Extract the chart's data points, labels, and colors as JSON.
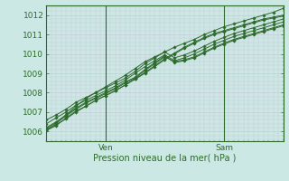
{
  "title": "",
  "xlabel": "Pression niveau de la mer( hPa )",
  "ylabel": "",
  "bg_color": "#cce8e4",
  "grid_color": "#c8c8d8",
  "line_color": "#2d6b2d",
  "ylim": [
    1005.5,
    1012.5
  ],
  "xlim": [
    0,
    48
  ],
  "xtick_positions": [
    12,
    36
  ],
  "xtick_labels": [
    "Ven",
    "Sam"
  ],
  "ytick_positions": [
    1006,
    1007,
    1008,
    1009,
    1010,
    1011,
    1012
  ],
  "vline_positions": [
    12,
    36
  ],
  "series": [
    {
      "x": [
        0,
        2,
        4,
        6,
        8,
        10,
        12,
        14,
        16,
        18,
        20,
        22,
        24,
        26,
        28,
        30,
        32,
        34,
        36,
        38,
        40,
        42,
        44,
        46,
        48
      ],
      "y": [
        1006.05,
        1006.3,
        1006.7,
        1007.05,
        1007.3,
        1007.6,
        1007.85,
        1008.1,
        1008.4,
        1008.7,
        1009.05,
        1009.4,
        1009.75,
        1010.05,
        1010.35,
        1010.6,
        1010.85,
        1011.05,
        1011.2,
        1011.35,
        1011.5,
        1011.65,
        1011.8,
        1011.9,
        1012.0
      ]
    },
    {
      "x": [
        0,
        2,
        4,
        6,
        8,
        10,
        12,
        14,
        16,
        18,
        20,
        22,
        24,
        26,
        28,
        30,
        32,
        34,
        36,
        38,
        40,
        42,
        44,
        46,
        48
      ],
      "y": [
        1006.1,
        1006.35,
        1006.65,
        1007.0,
        1007.3,
        1007.6,
        1007.85,
        1008.1,
        1008.4,
        1008.7,
        1009.0,
        1009.35,
        1009.7,
        1010.0,
        1010.3,
        1010.55,
        1010.8,
        1011.0,
        1011.15,
        1011.3,
        1011.45,
        1011.6,
        1011.75,
        1011.85,
        1011.95
      ]
    },
    {
      "x": [
        0,
        2,
        4,
        6,
        8,
        10,
        12,
        14,
        16,
        18,
        20,
        22,
        24,
        26,
        28,
        30,
        32,
        34,
        36,
        38,
        40,
        42,
        44,
        46,
        48
      ],
      "y": [
        1006.15,
        1006.45,
        1006.8,
        1007.15,
        1007.45,
        1007.7,
        1007.95,
        1008.2,
        1008.5,
        1008.75,
        1009.15,
        1009.5,
        1009.85,
        1009.6,
        1009.7,
        1009.85,
        1010.1,
        1010.35,
        1010.55,
        1010.75,
        1010.9,
        1011.05,
        1011.2,
        1011.35,
        1011.5
      ]
    },
    {
      "x": [
        0,
        2,
        4,
        6,
        8,
        10,
        12,
        14,
        16,
        18,
        20,
        22,
        24,
        26,
        28,
        30,
        32,
        34,
        36,
        38,
        40,
        42,
        44,
        46,
        48
      ],
      "y": [
        1006.2,
        1006.5,
        1006.85,
        1007.2,
        1007.5,
        1007.75,
        1008.0,
        1008.25,
        1008.55,
        1008.8,
        1009.2,
        1009.55,
        1009.9,
        1009.55,
        1009.65,
        1009.8,
        1010.05,
        1010.3,
        1010.5,
        1010.7,
        1010.85,
        1011.0,
        1011.15,
        1011.3,
        1011.45
      ]
    },
    {
      "x": [
        0,
        2,
        4,
        6,
        8,
        10,
        12,
        14,
        16,
        18,
        20,
        22,
        24,
        26,
        28,
        30,
        32,
        34,
        36,
        38,
        40,
        42,
        44,
        46,
        48
      ],
      "y": [
        1006.4,
        1006.7,
        1007.0,
        1007.35,
        1007.6,
        1007.85,
        1008.1,
        1008.35,
        1008.65,
        1009.0,
        1009.35,
        1009.65,
        1009.95,
        1009.65,
        1009.8,
        1010.0,
        1010.25,
        1010.5,
        1010.7,
        1010.9,
        1011.05,
        1011.2,
        1011.35,
        1011.5,
        1011.65
      ]
    },
    {
      "x": [
        0,
        2,
        4,
        6,
        8,
        10,
        12,
        14,
        16,
        18,
        20,
        22,
        24,
        26,
        28,
        30,
        32,
        34,
        36,
        38,
        40,
        42,
        44,
        46,
        48
      ],
      "y": [
        1006.6,
        1006.85,
        1007.15,
        1007.5,
        1007.75,
        1008.0,
        1008.25,
        1008.5,
        1008.75,
        1009.1,
        1009.5,
        1009.8,
        1010.1,
        1009.8,
        1009.95,
        1010.15,
        1010.4,
        1010.65,
        1010.85,
        1011.05,
        1011.2,
        1011.35,
        1011.5,
        1011.65,
        1011.8
      ]
    },
    {
      "x": [
        0,
        2,
        4,
        6,
        8,
        10,
        12,
        14,
        16,
        18,
        20,
        22,
        24,
        26,
        28,
        30,
        32,
        34,
        36,
        38,
        40,
        42,
        44,
        46,
        48
      ],
      "y": [
        1006.05,
        1006.4,
        1006.85,
        1007.3,
        1007.7,
        1008.0,
        1008.3,
        1008.6,
        1008.9,
        1009.25,
        1009.6,
        1009.85,
        1010.1,
        1010.35,
        1010.55,
        1010.75,
        1011.0,
        1011.2,
        1011.4,
        1011.55,
        1011.7,
        1011.85,
        1012.0,
        1012.15,
        1012.35
      ]
    }
  ]
}
